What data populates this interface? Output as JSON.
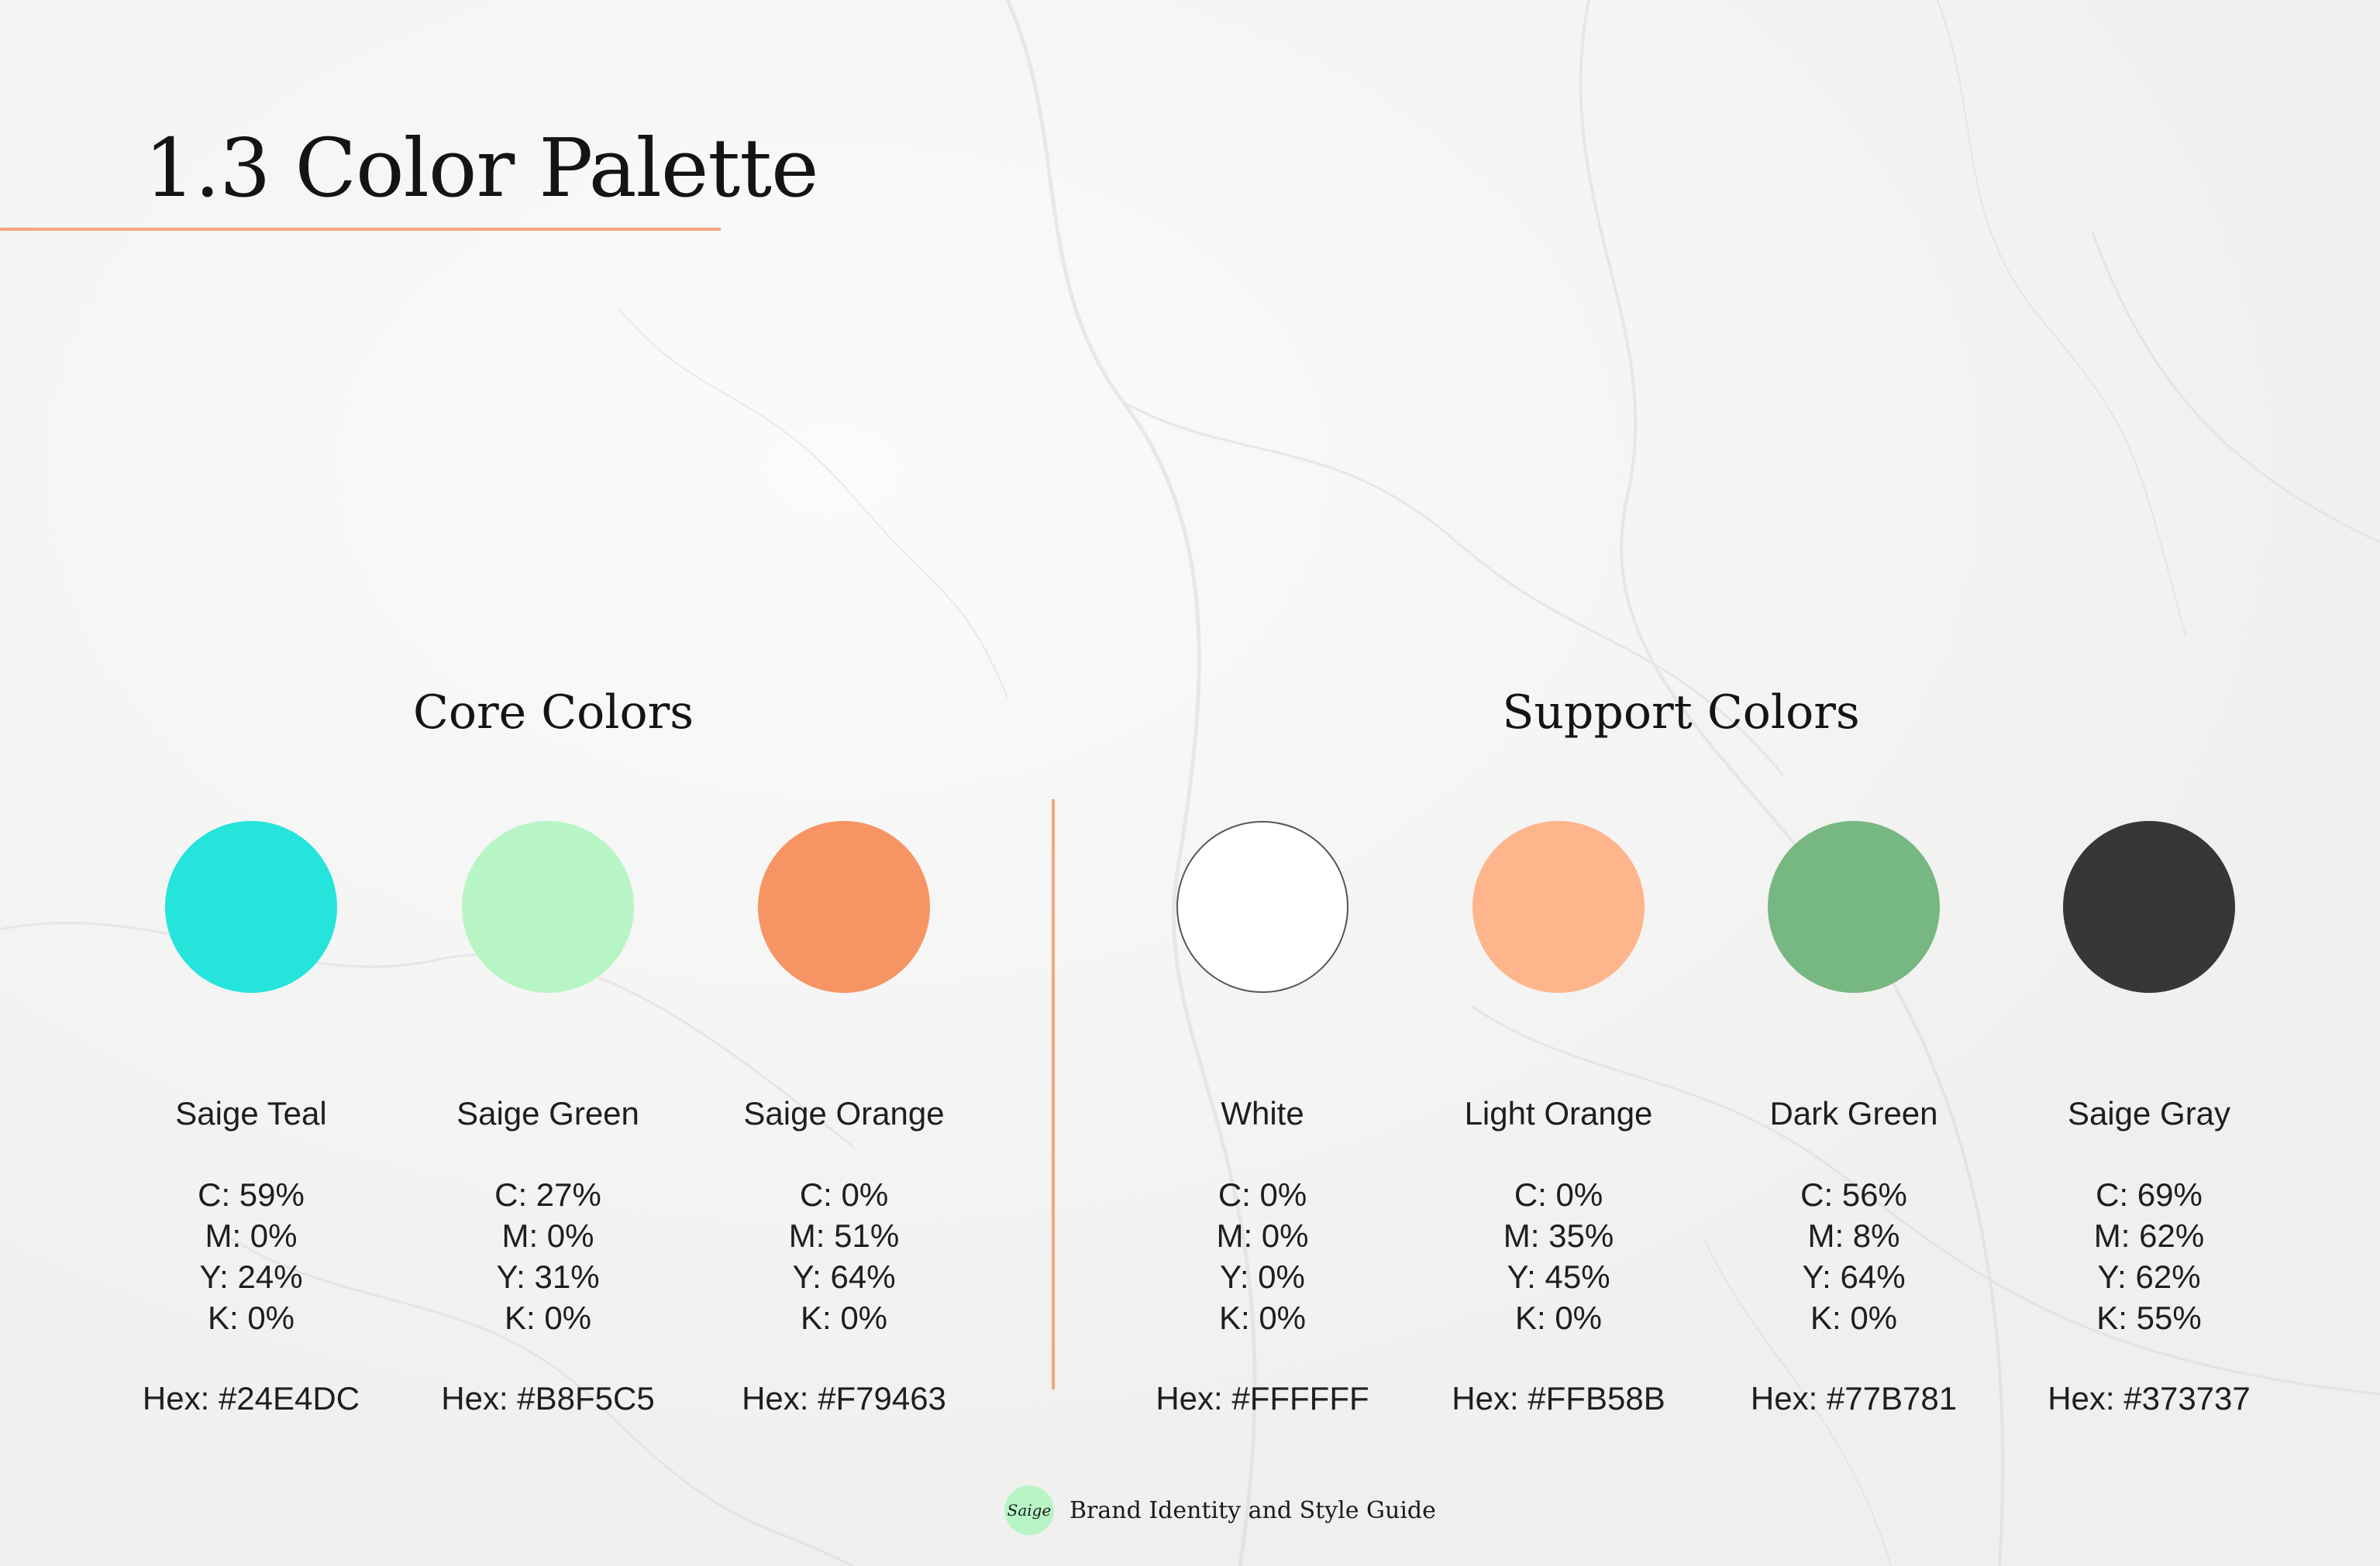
{
  "page": {
    "title": "1.3 Color Palette"
  },
  "sections": {
    "core": "Core Colors",
    "support": "Support Colors"
  },
  "swatches": [
    {
      "name": "Saige Teal",
      "c": "C: 59%",
      "m": "M: 0%",
      "y": "Y: 24%",
      "k": "K: 0%",
      "hex": "Hex: #24E4DC",
      "color": "#24E4DC"
    },
    {
      "name": "Saige Green",
      "c": "C: 27%",
      "m": "M: 0%",
      "y": "Y: 31%",
      "k": "K: 0%",
      "hex": "Hex: #B8F5C5",
      "color": "#B8F5C5"
    },
    {
      "name": "Saige Orange",
      "c": "C: 0%",
      "m": "M: 51%",
      "y": "Y: 64%",
      "k": "K: 0%",
      "hex": "Hex: #F79463",
      "color": "#F79463"
    },
    {
      "name": "White",
      "c": "C: 0%",
      "m": "M: 0%",
      "y": "Y: 0%",
      "k": "K: 0%",
      "hex": "Hex: #FFFFFF",
      "color": "#FFFFFF"
    },
    {
      "name": "Light Orange",
      "c": "C: 0%",
      "m": "M: 35%",
      "y": "Y: 45%",
      "k": "K: 0%",
      "hex": "Hex: #FFB58B",
      "color": "#FFB58B"
    },
    {
      "name": "Dark Green",
      "c": "C: 56%",
      "m": "M: 8%",
      "y": "Y: 64%",
      "k": "K: 0%",
      "hex": "Hex: #77B781",
      "color": "#77B781"
    },
    {
      "name": "Saige Gray",
      "c": "C: 69%",
      "m": "M: 62%",
      "y": "Y: 62%",
      "k": "K: 55%",
      "hex": "Hex: #373737",
      "color": "#373737"
    }
  ],
  "footer": {
    "logo_text": "Saige",
    "text": "Brand Identity and Style Guide"
  },
  "colors": {
    "accent_rule": "#F4A77C",
    "background": "#F4F4F3",
    "footer_logo": "#B8F5C5"
  }
}
